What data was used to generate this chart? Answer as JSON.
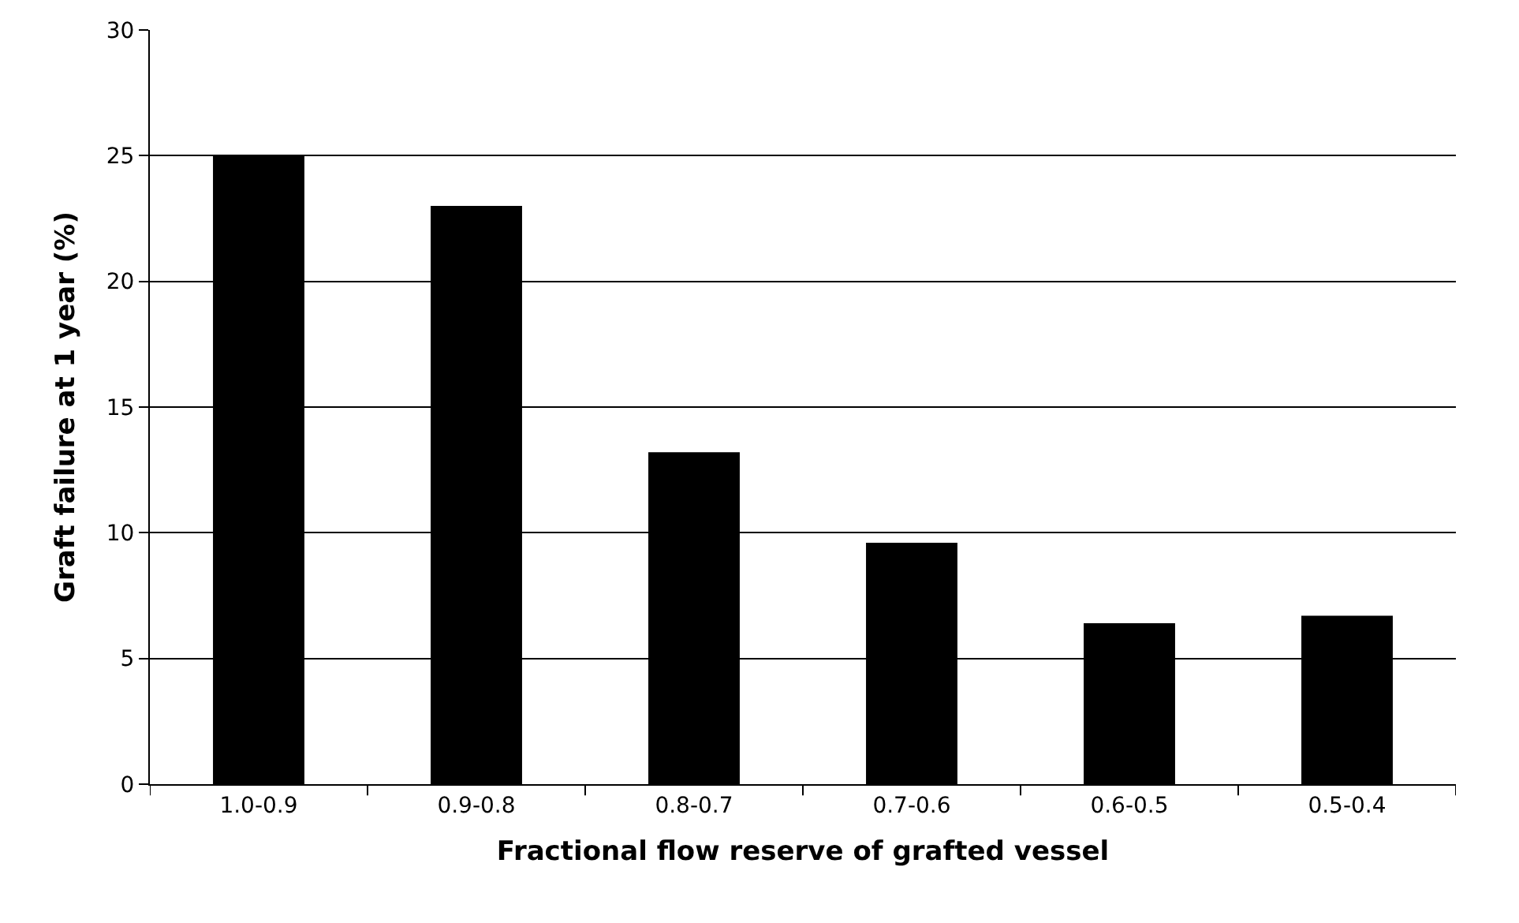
{
  "chart_data": {
    "type": "bar",
    "xlabel": "Fractional flow reserve of grafted vessel",
    "ylabel": "Graft failure at 1 year (%)",
    "categories": [
      "1.0-0.9",
      "0.9-0.8",
      "0.8-0.7",
      "0.7-0.6",
      "0.6-0.5",
      "0.5-0.4"
    ],
    "values": [
      25,
      23,
      13.2,
      9.6,
      6.4,
      6.7
    ],
    "color": "#000000",
    "ylim": [
      0,
      30
    ],
    "yticks": [
      0,
      5,
      10,
      15,
      20,
      25,
      30
    ],
    "grid": "y",
    "legend": false
  }
}
